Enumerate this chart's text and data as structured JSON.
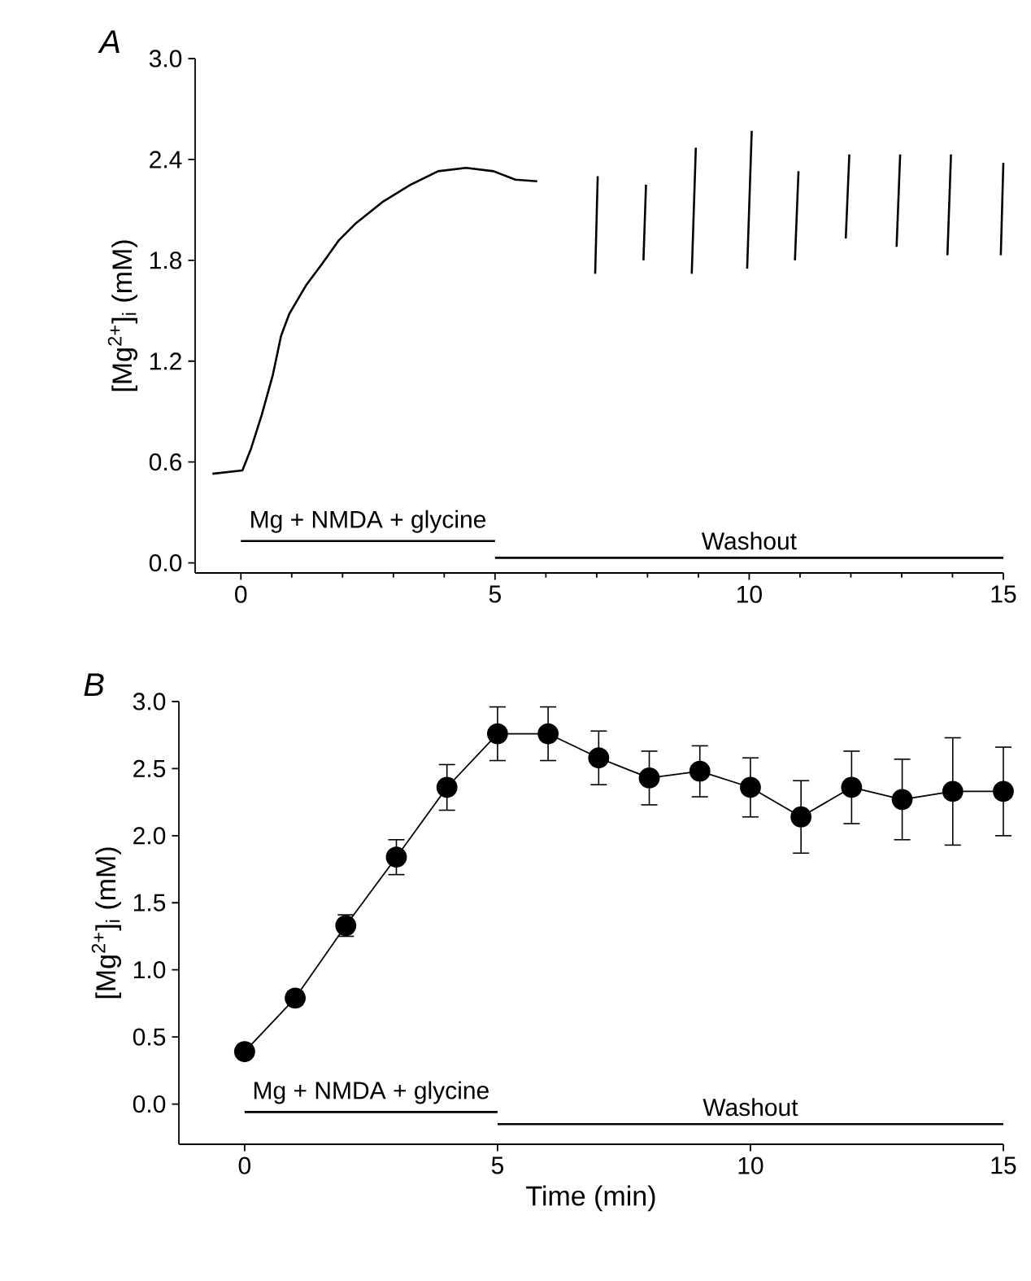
{
  "chart_data": [
    {
      "type": "line",
      "title": "A",
      "ylabel": "[Mg$^{2+}$]$_{i}$ (mM)",
      "xlim": [
        -0.9,
        15
      ],
      "xticks": [
        0,
        5,
        10,
        15
      ],
      "ylim": [
        -0.06,
        3
      ],
      "yticks": [
        {
          "value": 0,
          "label": "0.0"
        },
        {
          "value": 0.6,
          "label": "0.6"
        },
        {
          "value": 1.2,
          "label": "1.2"
        },
        {
          "value": 1.8,
          "label": "1.8"
        },
        {
          "value": 2.4,
          "label": "2.4"
        },
        {
          "value": 3,
          "label": "3.0"
        }
      ],
      "marker": "none",
      "grid": false,
      "series": [
        {
          "color": "#000000",
          "x": [
            -0.56,
            0.03,
            0.2,
            0.41,
            0.63,
            0.79,
            0.95,
            1.28,
            1.6,
            1.93,
            2.26,
            2.8,
            3.34,
            3.88,
            4.43,
            4.97,
            5.4,
            5.83,
            6.4,
            6.97,
            7.02,
            7.5,
            7.92,
            7.97,
            8.4,
            8.87,
            8.95,
            9.4,
            9.96,
            10.05,
            10.5,
            10.9,
            10.97,
            11.4,
            11.9,
            11.97,
            12.4,
            12.9,
            12.97,
            13.4,
            13.9,
            13.97,
            14.4,
            14.95,
            15.0
          ],
          "values": [
            0.53,
            0.55,
            0.68,
            0.88,
            1.12,
            1.35,
            1.48,
            1.65,
            1.78,
            1.92,
            2.02,
            2.15,
            2.25,
            2.33,
            2.35,
            2.33,
            2.28,
            2.27,
            null,
            1.72,
            2.3,
            null,
            1.8,
            2.25,
            null,
            1.72,
            2.47,
            null,
            1.75,
            2.57,
            null,
            1.8,
            2.33,
            null,
            1.93,
            2.43,
            null,
            1.88,
            2.43,
            null,
            1.83,
            2.43,
            null,
            1.83,
            2.38
          ]
        },
        {
          "name": "Mg + NMDA + glycine",
          "color": "#000000",
          "x": [
            0,
            5
          ],
          "values": [
            0.13,
            0.13
          ]
        },
        {
          "name": "Washout",
          "color": "#000000",
          "x": [
            5,
            15
          ],
          "values": [
            0.03,
            0.03
          ]
        }
      ]
    },
    {
      "type": "line",
      "title": "B",
      "xlabel": "Time (min)",
      "ylabel": "[Mg$^{2+}$]$_{i}$ (mM)",
      "xlim": [
        -1.3,
        15
      ],
      "xticks": [
        0,
        5,
        10,
        15
      ],
      "ylim": [
        -0.3,
        3
      ],
      "yticks": [
        {
          "value": 0,
          "label": "0.0"
        },
        {
          "value": 0.5,
          "label": "0.5"
        },
        {
          "value": 1,
          "label": "1.0"
        },
        {
          "value": 1.5,
          "label": "1.5"
        },
        {
          "value": 2,
          "label": "2.0"
        },
        {
          "value": 2.5,
          "label": "2.5"
        },
        {
          "value": 3,
          "label": "3.0"
        }
      ],
      "marker": "circle",
      "grid": false,
      "series": [
        {
          "color": "#000000",
          "x": [
            0,
            1,
            2,
            3,
            4,
            5,
            6,
            7,
            8,
            9,
            10,
            11,
            12,
            13,
            14,
            15
          ],
          "values": [
            0.39,
            0.79,
            1.33,
            1.84,
            2.36,
            2.76,
            2.76,
            2.58,
            2.43,
            2.48,
            2.36,
            2.14,
            2.36,
            2.27,
            2.33,
            2.33
          ],
          "errors": [
            0.04,
            0.05,
            0.08,
            0.13,
            0.17,
            0.2,
            0.2,
            0.2,
            0.2,
            0.19,
            0.22,
            0.27,
            0.27,
            0.3,
            0.4,
            0.33
          ]
        },
        {
          "name": "Mg + NMDA + glycine",
          "color": "#000000",
          "marker": "none",
          "x": [
            0,
            5
          ],
          "values": [
            -0.06,
            -0.06
          ]
        },
        {
          "name": "Washout",
          "color": "#000000",
          "marker": "none",
          "x": [
            5,
            15
          ],
          "values": [
            -0.15,
            -0.15
          ]
        }
      ]
    }
  ]
}
